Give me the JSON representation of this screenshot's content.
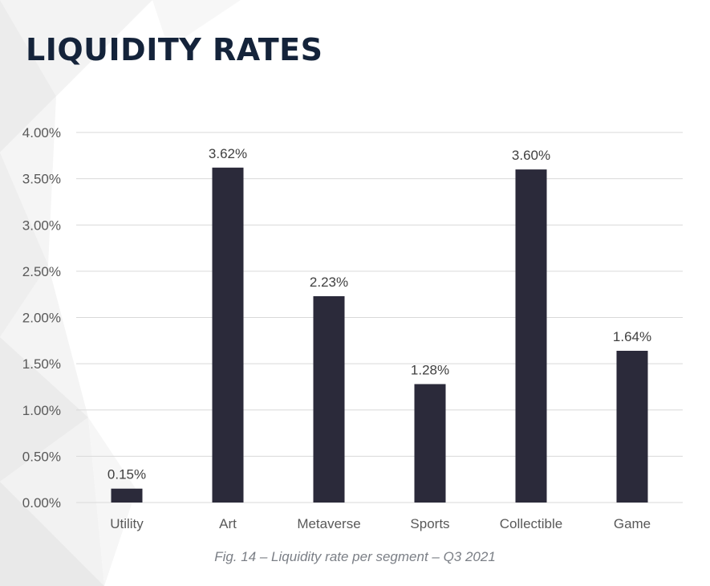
{
  "page": {
    "title": "LIQUIDITY RATES",
    "caption": "Fig. 14 – Liquidity rate per segment – Q3 2021"
  },
  "colors": {
    "bar": "#2b2a3a",
    "grid": "#d9d9d9",
    "tick_text": "#595959",
    "label_text": "#404040",
    "title": "#14233a"
  },
  "chart_data": {
    "type": "bar",
    "title": "",
    "xlabel": "",
    "ylabel": "",
    "categories": [
      "Utility",
      "Art",
      "Metaverse",
      "Sports",
      "Collectible",
      "Game"
    ],
    "values": [
      0.15,
      3.62,
      2.23,
      1.28,
      3.6,
      1.64
    ],
    "value_labels": [
      "0.15%",
      "3.62%",
      "2.23%",
      "1.28%",
      "3.60%",
      "1.64%"
    ],
    "ylim": [
      0,
      4
    ],
    "yticks": [
      0,
      0.5,
      1,
      1.5,
      2,
      2.5,
      3,
      3.5,
      4
    ],
    "ytick_labels": [
      "0.00%",
      "0.50%",
      "1.00%",
      "1.50%",
      "2.00%",
      "2.50%",
      "3.00%",
      "3.50%",
      "4.00%"
    ],
    "grid": true,
    "legend": "none"
  }
}
